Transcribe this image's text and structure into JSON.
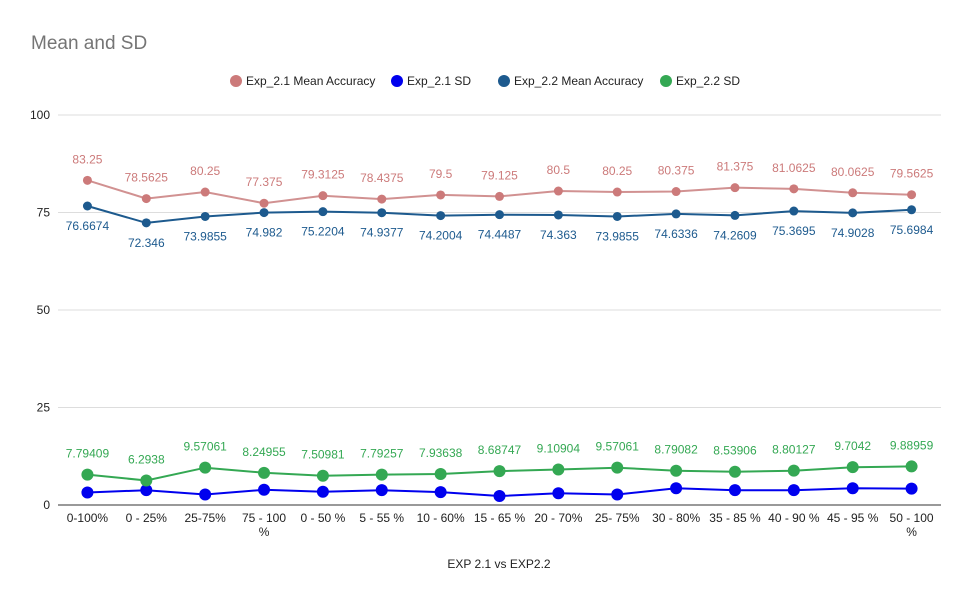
{
  "chart_data": {
    "type": "line",
    "title": "Mean and SD",
    "xlabel": "EXP 2.1 vs EXP2.2",
    "ylabel": "",
    "ylim": [
      0,
      100
    ],
    "yticks": [
      "0",
      "25",
      "50",
      "75",
      "100"
    ],
    "grid": true,
    "legend_position": "top",
    "categories": [
      "0-100%",
      "0 - 25%",
      "25-75%",
      "75 - 100 %",
      "0 - 50 %",
      "5 - 55 %",
      "10 - 60%",
      "15 - 65 %",
      "20 - 70%",
      "25- 75%",
      "30 - 80%",
      "35 - 85 %",
      "40 - 90 %",
      "45 - 95 %",
      "50 - 100 %"
    ],
    "series": [
      {
        "name": "Exp_2.1 Mean Accuracy",
        "color": "#cc7a7a",
        "line_color": "#d19191",
        "values": [
          83.25,
          78.5625,
          80.25,
          77.375,
          79.3125,
          78.4375,
          79.5,
          79.125,
          80.5,
          80.25,
          80.375,
          81.375,
          81.0625,
          80.0625,
          79.5625
        ],
        "labels": [
          "83.25",
          "78.5625",
          "80.25",
          "77.375",
          "79.3125",
          "78.4375",
          "79.5",
          "79.125",
          "80.5",
          "80.25",
          "80.375",
          "81.375",
          "81.0625",
          "80.0625",
          "79.5625"
        ],
        "label_position": "above"
      },
      {
        "name": "Exp_2.1 SD",
        "color": "#0000ee",
        "line_color": "#0000ee",
        "values": [
          3.2,
          3.8,
          2.7,
          3.9,
          3.4,
          3.8,
          3.3,
          2.3,
          3.0,
          2.7,
          4.3,
          3.8,
          3.8,
          4.3,
          4.2
        ],
        "labels": [],
        "label_position": "none"
      },
      {
        "name": "Exp_2.2 Mean Accuracy",
        "color": "#1d5a8e",
        "line_color": "#1d5a8e",
        "values": [
          76.6674,
          72.346,
          73.9855,
          74.982,
          75.2204,
          74.9377,
          74.2004,
          74.4487,
          74.363,
          73.9855,
          74.6336,
          74.2609,
          75.3695,
          74.9028,
          75.6984
        ],
        "labels": [
          "76.6674",
          "72.346",
          "73.9855",
          "74.982",
          "75.2204",
          "74.9377",
          "74.2004",
          "74.4487",
          "74.363",
          "73.9855",
          "74.6336",
          "74.2609",
          "75.3695",
          "74.9028",
          "75.6984"
        ],
        "label_position": "below"
      },
      {
        "name": "Exp_2.2 SD",
        "color": "#34a853",
        "line_color": "#34a853",
        "values": [
          7.79409,
          6.2938,
          9.57061,
          8.24955,
          7.50981,
          7.79257,
          7.93638,
          8.68747,
          9.10904,
          9.57061,
          8.79082,
          8.53906,
          8.80127,
          9.7042,
          9.88959
        ],
        "labels": [
          "7.79409",
          "6.2938",
          "9.57061",
          "8.24955",
          "7.50981",
          "7.79257",
          "7.93638",
          "8.68747",
          "9.10904",
          "9.57061",
          "8.79082",
          "8.53906",
          "8.80127",
          "9.7042",
          "9.88959"
        ],
        "label_position": "above"
      }
    ]
  }
}
